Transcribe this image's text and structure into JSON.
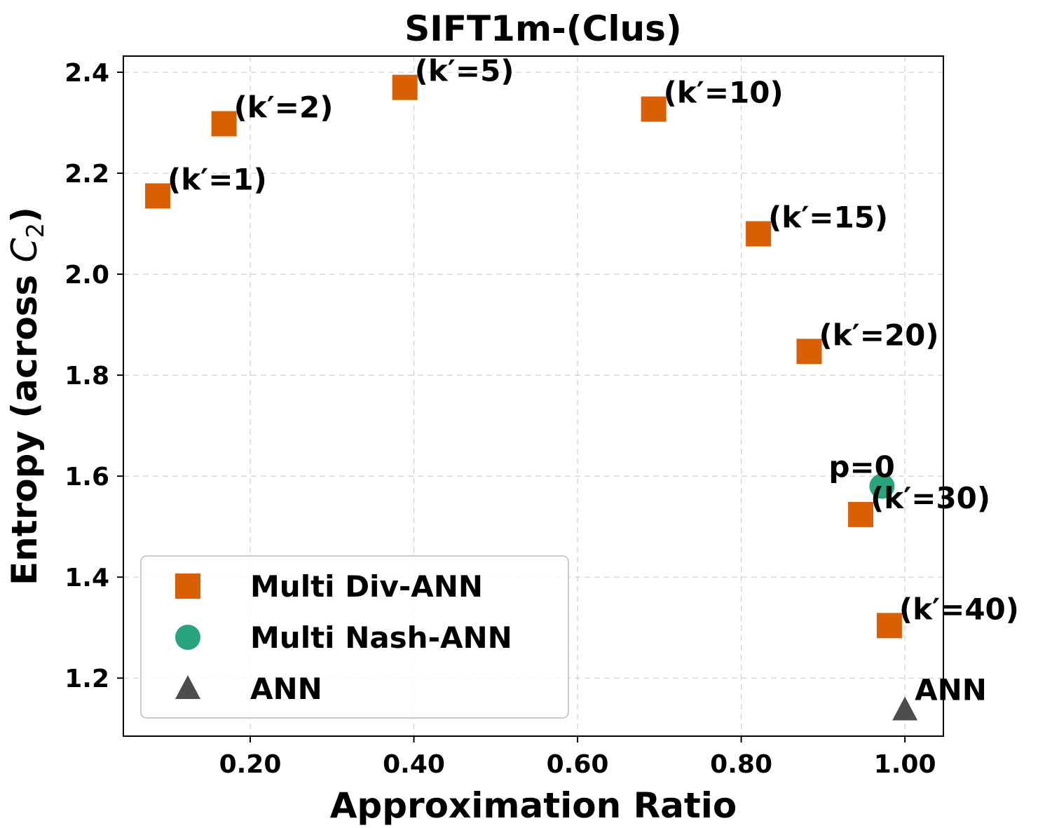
{
  "chart_data": {
    "type": "scatter",
    "title": "SIFT1m-(Clus)",
    "xlabel": "Approximation Ratio",
    "ylabel_prefix": "Entropy (across ",
    "ylabel_var": "C",
    "ylabel_sub": "2",
    "ylabel_suffix": ")",
    "xlim": [
      0.045,
      1.047
    ],
    "ylim": [
      1.085,
      2.432
    ],
    "xticks": [
      0.2,
      0.4,
      0.6,
      0.8,
      1.0
    ],
    "xtick_labels": [
      "0.20",
      "0.40",
      "0.60",
      "0.80",
      "1.00"
    ],
    "yticks": [
      1.2,
      1.4,
      1.6,
      1.8,
      2.0,
      2.2,
      2.4
    ],
    "ytick_labels": [
      "1.2",
      "1.4",
      "1.6",
      "1.8",
      "2.0",
      "2.2",
      "2.4"
    ],
    "grid": true,
    "legend_position": "lower-left",
    "series": [
      {
        "name": "Multi Div-ANN",
        "marker": "square",
        "color": "#d95f02",
        "points": [
          {
            "x": 0.087,
            "y": 2.155,
            "label": "(k′=1)"
          },
          {
            "x": 0.168,
            "y": 2.298,
            "label": "(k′=2)"
          },
          {
            "x": 0.389,
            "y": 2.37,
            "label": "(k′=5)"
          },
          {
            "x": 0.693,
            "y": 2.327,
            "label": "(k′=10)"
          },
          {
            "x": 0.821,
            "y": 2.08,
            "label": "(k′=15)"
          },
          {
            "x": 0.883,
            "y": 1.847,
            "label": "(k′=20)"
          },
          {
            "x": 0.946,
            "y": 1.524,
            "label": "(k′=30)"
          },
          {
            "x": 0.981,
            "y": 1.304,
            "label": "(k′=40)"
          }
        ]
      },
      {
        "name": "Multi Nash-ANN",
        "marker": "circle",
        "color": "#1b9e77",
        "points": [
          {
            "x": 0.972,
            "y": 1.58,
            "label": "p=0"
          }
        ]
      },
      {
        "name": "ANN",
        "marker": "triangle",
        "color": "#4d4d4d",
        "points": [
          {
            "x": 1.0,
            "y": 1.137,
            "label": "ANN"
          }
        ]
      }
    ]
  }
}
